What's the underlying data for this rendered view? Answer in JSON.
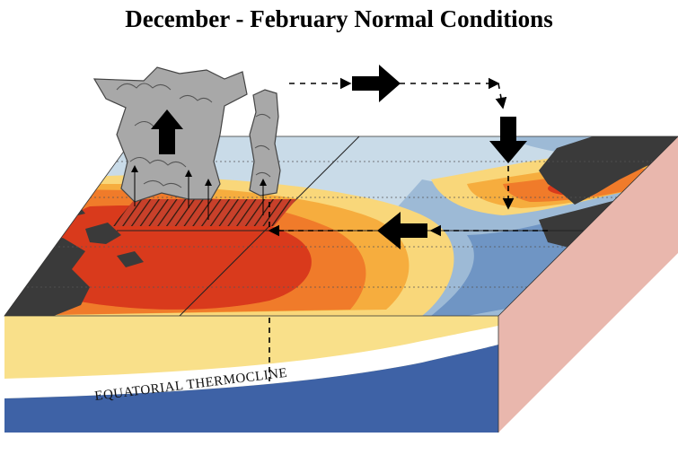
{
  "title": "December - February Normal Conditions",
  "thermocline_label": "EQUATORIAL THERMOCLINE",
  "colors": {
    "warm_pool_core": "#d93a1c",
    "warm_pool": "#f07b2a",
    "warm_orange": "#f6ad3e",
    "warm_yellow": "#f9d77a",
    "cool_light": "#c9dbe8",
    "cool_mid": "#9dbad6",
    "cool_blue": "#6f95c4",
    "land": "#3a3a3a",
    "mixed_layer": "#f9e08a",
    "thermocline_band": "#ffffff",
    "deep_ocean": "#3e62a6",
    "box_side": "#e9b7ad",
    "cloud": "#a8a8a8"
  },
  "icons": [
    "convection-cloud-icon",
    "upward-arrow-icon",
    "eastward-arrow-icon",
    "downward-arrow-icon",
    "westward-arrow-icon"
  ]
}
